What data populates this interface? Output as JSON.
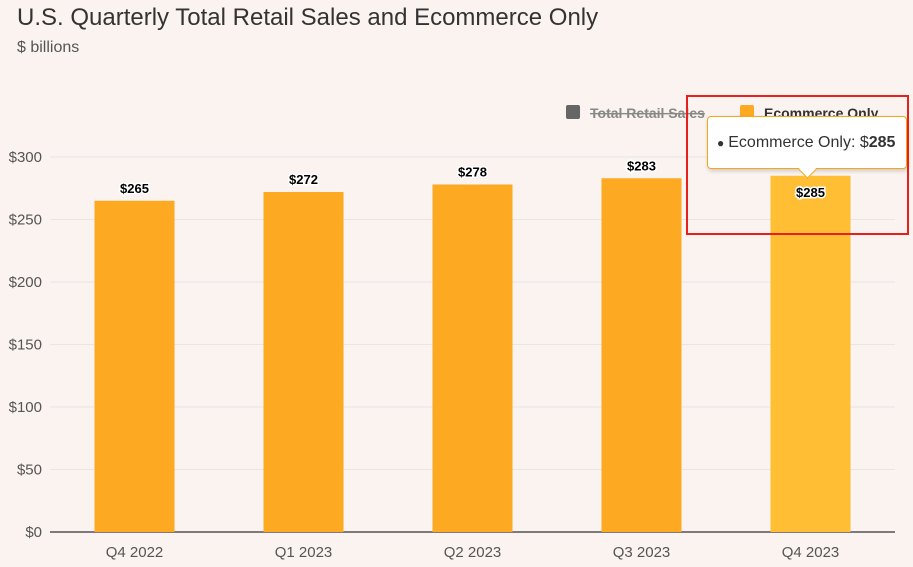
{
  "header": {
    "title": "U.S. Quarterly Total Retail Sales and Ecommerce Only",
    "subtitle": "$ billions"
  },
  "colors": {
    "background": "#fbf3f0",
    "bar": "#fdaa22",
    "bar_hover": "#ffbe33",
    "hidden_series": "#666666",
    "highlight_border": "#e8201c",
    "grid": "#e6e6e6",
    "axis": "#333333"
  },
  "tooltip": {
    "bullet": "●",
    "series_label": "Ecommerce Only: $",
    "value": "285"
  },
  "chart_data": {
    "type": "bar",
    "title": "U.S. Quarterly Total Retail Sales and Ecommerce Only",
    "subtitle": "$ billions",
    "categories": [
      "Q4 2022",
      "Q1 2023",
      "Q2 2023",
      "Q3 2023",
      "Q4 2023"
    ],
    "series": [
      {
        "name": "Total Retail Sales",
        "visible": false,
        "legend_symbol_color": "#666666"
      },
      {
        "name": "Ecommerce Only",
        "visible": true,
        "color": "#fdaa22",
        "values": [
          265,
          272,
          278,
          283,
          285
        ],
        "data_labels": [
          "$265",
          "$272",
          "$278",
          "$283",
          "$285"
        ]
      }
    ],
    "hovered_index": 4,
    "ylim": [
      0,
      300
    ],
    "yticks": [
      0,
      50,
      100,
      150,
      200,
      250,
      300
    ],
    "ytick_labels": [
      "$0",
      "$50",
      "$100",
      "$150",
      "$200",
      "$250",
      "$300"
    ],
    "grid": true,
    "legend_position": "top-right"
  }
}
